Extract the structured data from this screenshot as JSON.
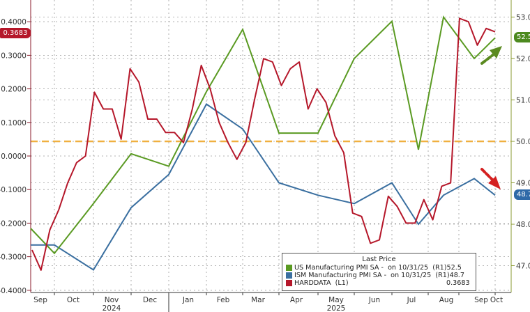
{
  "chart_data": {
    "type": "line",
    "title": "",
    "legend": {
      "title": "Last Price",
      "position": "bottom-right",
      "entries": [
        {
          "label": "US Manufacturing PMI SA -  on 10/31/25  (R1)",
          "value": "52.5",
          "color": "#5a9a22",
          "axis": "right"
        },
        {
          "label": "ISM Manufacturing PMI SA -  on 10/31/25  (R1)",
          "value": "48.7",
          "color": "#3a6fa0",
          "axis": "right"
        },
        {
          "label": "HARDDATA  (L1)",
          "value": "0.3683",
          "color": "#b5172a",
          "axis": "left"
        }
      ]
    },
    "x_axis": {
      "months": [
        "Sep",
        "Oct",
        "Nov",
        "Dec",
        "Jan",
        "Feb",
        "Mar",
        "Apr",
        "May",
        "Jun",
        "Jul",
        "Aug",
        "Sep",
        "Oct"
      ],
      "years": [
        {
          "label": "2024",
          "under": "Nov"
        },
        {
          "label": "2025",
          "under": "May"
        }
      ],
      "range": [
        "2024-09",
        "2025-10"
      ]
    },
    "left_axis": {
      "ticks": [
        "0.4000",
        "0.3000",
        "0.2000",
        "0.1000",
        "0.0000",
        "-0.1000",
        "-0.2000",
        "-0.3000",
        "-0.4000"
      ],
      "ylim": [
        -0.42,
        0.45
      ],
      "last_value_badge": "0.3683"
    },
    "right_axis": {
      "ticks": [
        "53.0",
        "52.0",
        "51.0",
        "50.0",
        "49.0",
        "48.0",
        "47.0"
      ],
      "ylim": [
        46.5,
        53.4
      ],
      "last_value_badges": [
        "52.5",
        "48.7"
      ]
    },
    "reference_line": {
      "axis": "right",
      "value": 50.0,
      "style": "dashed",
      "color": "#f0b040"
    },
    "series": [
      {
        "name": "US Manufacturing PMI SA",
        "axis": "right",
        "color": "#5a9a22",
        "x": [
          "2024-08",
          "2024-09",
          "2024-10",
          "2024-11",
          "2024-12",
          "2025-01",
          "2025-02",
          "2025-03",
          "2025-04",
          "2025-05",
          "2025-06",
          "2025-07",
          "2025-08",
          "2025-09",
          "2025-10"
        ],
        "values": [
          47.9,
          47.3,
          48.5,
          49.7,
          49.4,
          51.2,
          52.7,
          50.2,
          50.2,
          52.0,
          52.9,
          49.8,
          53.0,
          52.0,
          52.5
        ]
      },
      {
        "name": "ISM Manufacturing PMI SA",
        "axis": "right",
        "color": "#3a6fa0",
        "x": [
          "2024-08",
          "2024-09",
          "2024-10",
          "2024-11",
          "2024-12",
          "2025-01",
          "2025-02",
          "2025-03",
          "2025-04",
          "2025-05",
          "2025-06",
          "2025-07",
          "2025-08",
          "2025-09",
          "2025-10"
        ],
        "values": [
          47.5,
          47.5,
          46.9,
          48.4,
          49.2,
          50.9,
          50.3,
          49.0,
          48.7,
          48.5,
          49.0,
          48.0,
          48.7,
          49.1,
          48.7
        ]
      },
      {
        "name": "HARDDATA",
        "axis": "left",
        "color": "#b5172a",
        "x_desc": "daily-ish, Sep 2024 to Oct 2025",
        "values_approx": [
          -0.28,
          -0.34,
          -0.22,
          -0.16,
          -0.08,
          -0.02,
          0.0,
          0.19,
          0.14,
          0.14,
          0.05,
          0.26,
          0.22,
          0.11,
          0.11,
          0.07,
          0.07,
          0.04,
          0.14,
          0.27,
          0.2,
          0.1,
          0.04,
          -0.01,
          0.04,
          0.17,
          0.29,
          0.28,
          0.21,
          0.26,
          0.28,
          0.14,
          0.2,
          0.16,
          0.06,
          0.01,
          -0.17,
          -0.18,
          -0.26,
          -0.25,
          -0.12,
          -0.15,
          -0.2,
          -0.2,
          -0.13,
          -0.19,
          -0.09,
          -0.08,
          0.41,
          0.4,
          0.33,
          0.38,
          0.37
        ]
      }
    ],
    "annotations": [
      {
        "type": "dashed-arrow",
        "color": "#5a8a20",
        "direction": "up-right",
        "near": "US Manufacturing PMI end"
      },
      {
        "type": "dashed-arrow",
        "color": "#d42020",
        "direction": "down-right",
        "near": "ISM Manufacturing PMI end"
      }
    ],
    "grid": true
  },
  "legend_ui": {
    "title": "Last Price",
    "rows": [
      {
        "label": "US Manufacturing PMI SA -  on 10/31/25  (R1)",
        "value": "52.5"
      },
      {
        "label": "ISM Manufacturing PMI SA -  on 10/31/25  (R1)",
        "value": "48.7"
      },
      {
        "label": "HARDDATA  (L1)",
        "value": "0.3683"
      }
    ]
  },
  "badges": {
    "harddata": "0.3683",
    "us_pmi": "52.5",
    "ism_pmi": "48.7"
  },
  "colors": {
    "us_pmi": "#5a9a22",
    "ism_pmi": "#3a6fa0",
    "harddata": "#b5172a",
    "ref_line": "#f0b040"
  }
}
